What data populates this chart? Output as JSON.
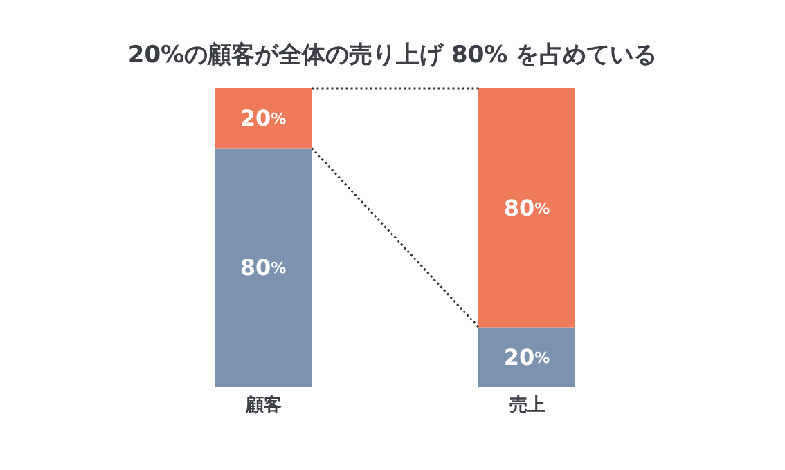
{
  "chart_data": {
    "type": "bar",
    "title": "20%の顧客が全体の売り上げ 80% を占めている",
    "categories": [
      "顧客",
      "売上"
    ],
    "stacked": true,
    "ylim": [
      0,
      100
    ],
    "tick_labels": "x",
    "series": [
      {
        "color": "#7b93b0",
        "values": [
          80,
          20
        ],
        "value_labels": [
          "80%",
          "20%"
        ]
      },
      {
        "color": "#ef7a5a",
        "values": [
          20,
          80
        ],
        "value_labels": [
          "20%",
          "80%"
        ]
      }
    ]
  }
}
